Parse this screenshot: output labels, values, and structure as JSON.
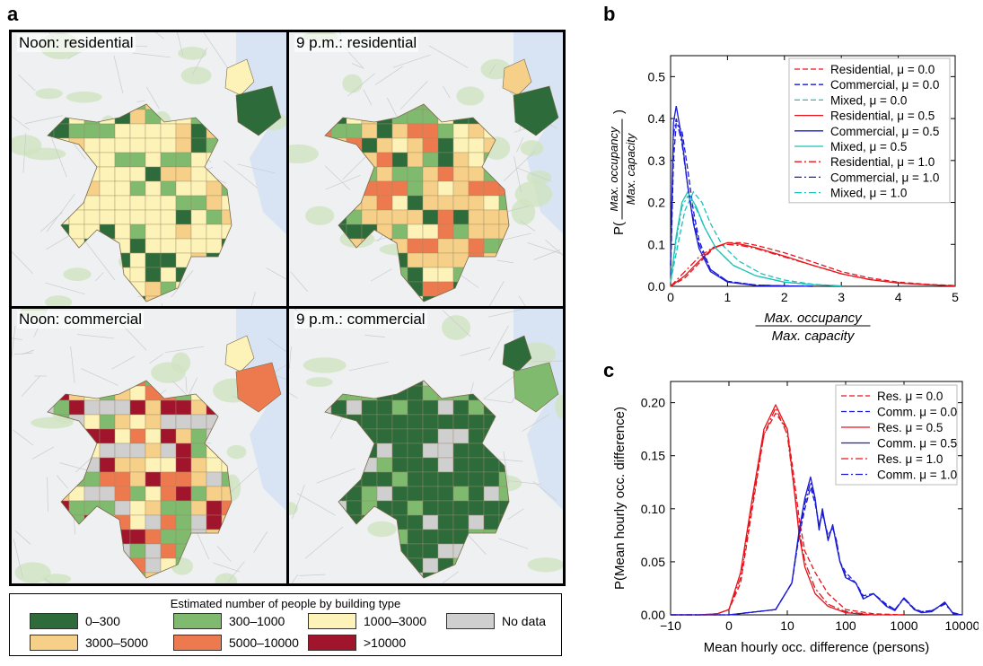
{
  "panel_labels": {
    "a": "a",
    "b": "b",
    "c": "c"
  },
  "maps": [
    {
      "title": "Noon: residential",
      "scheme": "noon_res"
    },
    {
      "title": "9 p.m.: residential",
      "scheme": "pm_res"
    },
    {
      "title": "Noon: commercial",
      "scheme": "noon_com"
    },
    {
      "title": "9 p.m.: commercial",
      "scheme": "pm_com"
    }
  ],
  "map_legend": {
    "title": "Estimated number of people by building type",
    "items": [
      {
        "label": "0–300",
        "color": "#2e6b3a"
      },
      {
        "label": "300–1000",
        "color": "#7fba6e"
      },
      {
        "label": "1000–3000",
        "color": "#fdf3b8"
      },
      {
        "label": "No data",
        "color": "#cfcfcf"
      },
      {
        "label": "3000–5000",
        "color": "#f6d089"
      },
      {
        "label": "5000–10000",
        "color": "#ec7a4e"
      },
      {
        "label": ">10000",
        "color": "#a0142c"
      }
    ]
  },
  "chart_data": [
    {
      "panel": "b",
      "type": "line",
      "xlabel_num": "Max. occupancy",
      "xlabel_den": "Max. capacity",
      "ylabel_prefix": "P(",
      "ylabel_num": "Max. occupancy",
      "ylabel_den": "Max. capacity",
      "ylabel_suffix": ")",
      "xlim": [
        0,
        5
      ],
      "ylim": [
        0,
        0.55
      ],
      "xticks": [
        "0",
        "1",
        "2",
        "3",
        "4",
        "5"
      ],
      "yticks": [
        "0.0",
        "0.1",
        "0.2",
        "0.3",
        "0.4",
        "0.5"
      ],
      "legend_position": "top-right",
      "colors": {
        "res": "#e8141c",
        "com": "#1a1ad6",
        "mix": "#1ec2b8"
      },
      "series": [
        {
          "name": "Residential, μ = 0.0",
          "color": "#e8141c",
          "dash": "dashed",
          "x": [
            0,
            0.25,
            0.5,
            0.75,
            1,
            1.25,
            1.5,
            2,
            2.5,
            3,
            3.5,
            4,
            4.5,
            5
          ],
          "y": [
            0,
            0.02,
            0.055,
            0.09,
            0.104,
            0.104,
            0.098,
            0.08,
            0.058,
            0.035,
            0.02,
            0.01,
            0.005,
            0.002
          ]
        },
        {
          "name": "Commercial, μ = 0.0",
          "color": "#1a1ad6",
          "dash": "dashed",
          "x": [
            0,
            0.05,
            0.1,
            0.2,
            0.3,
            0.4,
            0.5,
            0.7,
            1,
            1.5,
            2,
            2.5
          ],
          "y": [
            0.03,
            0.3,
            0.39,
            0.37,
            0.28,
            0.18,
            0.11,
            0.04,
            0.012,
            0.003,
            0.001,
            0
          ]
        },
        {
          "name": "Mixed, μ = 0.0",
          "color": "#1ec2b8",
          "dash": "dashed",
          "x": [
            0,
            0.1,
            0.25,
            0.4,
            0.55,
            0.7,
            0.9,
            1.2,
            1.6,
            2,
            2.5,
            3
          ],
          "y": [
            0.01,
            0.08,
            0.18,
            0.225,
            0.2,
            0.15,
            0.1,
            0.06,
            0.03,
            0.015,
            0.005,
            0.001
          ]
        },
        {
          "name": "Residential, μ = 0.5",
          "color": "#e8141c",
          "dash": "solid",
          "x": [
            0,
            0.25,
            0.5,
            0.75,
            1,
            1.25,
            1.5,
            2,
            2.5,
            3,
            3.5,
            4,
            4.5,
            5
          ],
          "y": [
            0,
            0.025,
            0.06,
            0.092,
            0.104,
            0.1,
            0.092,
            0.072,
            0.05,
            0.03,
            0.016,
            0.008,
            0.004,
            0.001
          ]
        },
        {
          "name": "Commercial, μ = 0.5",
          "color": "#1a1ad6",
          "dash": "solid",
          "x": [
            0,
            0.05,
            0.1,
            0.2,
            0.3,
            0.4,
            0.5,
            0.7,
            1,
            1.5,
            2,
            2.5
          ],
          "y": [
            0.05,
            0.39,
            0.43,
            0.35,
            0.24,
            0.15,
            0.09,
            0.035,
            0.01,
            0.002,
            0.001,
            0
          ]
        },
        {
          "name": "Mixed, μ = 0.5",
          "color": "#1ec2b8",
          "dash": "solid",
          "x": [
            0,
            0.1,
            0.2,
            0.3,
            0.45,
            0.6,
            0.8,
            1.1,
            1.5,
            2,
            2.5,
            3
          ],
          "y": [
            0.01,
            0.12,
            0.2,
            0.225,
            0.19,
            0.14,
            0.09,
            0.05,
            0.025,
            0.01,
            0.004,
            0.001
          ]
        },
        {
          "name": "Residential, μ = 1.0",
          "color": "#e8141c",
          "dash": "dashdot",
          "x": [
            0,
            0.25,
            0.5,
            0.75,
            1,
            1.25,
            1.5,
            2,
            2.5,
            3,
            3.5,
            4,
            4.5,
            5
          ],
          "y": [
            0,
            0.035,
            0.07,
            0.093,
            0.1,
            0.097,
            0.09,
            0.07,
            0.05,
            0.03,
            0.016,
            0.008,
            0.004,
            0.001
          ]
        },
        {
          "name": "Commercial, μ = 1.0",
          "color": "#1a1ad6",
          "dash": "dashdot",
          "x": [
            0,
            0.05,
            0.1,
            0.2,
            0.3,
            0.4,
            0.5,
            0.7,
            1,
            1.5,
            2,
            2.5
          ],
          "y": [
            0.05,
            0.36,
            0.4,
            0.34,
            0.24,
            0.16,
            0.1,
            0.04,
            0.012,
            0.003,
            0.001,
            0
          ]
        },
        {
          "name": "Mixed, μ = 1.0",
          "color": "#1ec2b8",
          "dash": "dashdot",
          "x": [
            0,
            0.1,
            0.2,
            0.3,
            0.45,
            0.6,
            0.8,
            1.1,
            1.5,
            2,
            2.5,
            3
          ],
          "y": [
            0.01,
            0.11,
            0.19,
            0.215,
            0.185,
            0.14,
            0.09,
            0.05,
            0.025,
            0.01,
            0.004,
            0.001
          ]
        }
      ]
    },
    {
      "panel": "c",
      "type": "line",
      "xlabel": "Mean hourly occ. difference (persons)",
      "ylabel": "P(Mean hourly occ. difference)",
      "xscale": "symlog",
      "xlim": [
        -10,
        10000
      ],
      "ylim": [
        0,
        0.22
      ],
      "xticks": [
        {
          "value": -10,
          "label": "−10"
        },
        {
          "value": 0,
          "label": "0"
        },
        {
          "value": 10,
          "label": "10"
        },
        {
          "value": 100,
          "label": "100"
        },
        {
          "value": 1000,
          "label": "1000"
        },
        {
          "value": 10000,
          "label": "10000"
        }
      ],
      "yticks": [
        "0.00",
        "0.05",
        "0.10",
        "0.15",
        "0.20"
      ],
      "legend_position": "top-right",
      "series": [
        {
          "name": "Res. μ = 0.0",
          "color": "#e8141c",
          "dash": "dashed",
          "x": [
            -10,
            -5,
            -2,
            0,
            2,
            4,
            6,
            8,
            10,
            13,
            16,
            20,
            30,
            50,
            100,
            300,
            1000
          ],
          "y": [
            0,
            0,
            0.001,
            0.005,
            0.03,
            0.1,
            0.17,
            0.19,
            0.175,
            0.13,
            0.09,
            0.06,
            0.04,
            0.02,
            0.005,
            0.001,
            0
          ]
        },
        {
          "name": "Comm. μ = 0.0",
          "color": "#1a1ad6",
          "dash": "dashed",
          "x": [
            -10,
            0,
            8,
            12,
            16,
            20,
            25,
            30,
            35,
            40,
            50,
            60,
            70,
            80,
            100,
            150,
            200,
            300,
            500,
            700,
            1000,
            1500,
            2000,
            3000,
            5000,
            7000,
            10000
          ],
          "y": [
            0,
            0,
            0.005,
            0.03,
            0.075,
            0.1,
            0.12,
            0.105,
            0.085,
            0.095,
            0.075,
            0.082,
            0.07,
            0.05,
            0.04,
            0.03,
            0.018,
            0.02,
            0.01,
            0.005,
            0.016,
            0.006,
            0.003,
            0.004,
            0.01,
            0.002,
            0
          ]
        },
        {
          "name": "Res. μ = 0.5",
          "color": "#e8141c",
          "dash": "solid",
          "x": [
            -10,
            -5,
            -2,
            0,
            2,
            4,
            6,
            8,
            10,
            13,
            16,
            20,
            30,
            50,
            100,
            300,
            1000
          ],
          "y": [
            0,
            0,
            0.001,
            0.005,
            0.04,
            0.11,
            0.175,
            0.198,
            0.175,
            0.12,
            0.075,
            0.045,
            0.02,
            0.008,
            0.002,
            0,
            0
          ]
        },
        {
          "name": "Comm. μ = 0.5",
          "color": "#1a1ad6",
          "dash": "solid",
          "x": [
            -10,
            0,
            8,
            12,
            16,
            20,
            25,
            30,
            35,
            40,
            50,
            60,
            70,
            80,
            100,
            150,
            200,
            300,
            500,
            700,
            1000,
            1500,
            2000,
            3000,
            5000,
            7000,
            10000
          ],
          "y": [
            0,
            0,
            0.005,
            0.03,
            0.08,
            0.11,
            0.13,
            0.11,
            0.08,
            0.1,
            0.07,
            0.085,
            0.065,
            0.05,
            0.035,
            0.03,
            0.015,
            0.02,
            0.008,
            0.004,
            0.016,
            0.005,
            0.002,
            0.003,
            0.012,
            0.001,
            0
          ]
        },
        {
          "name": "Res. μ = 1.0",
          "color": "#e8141c",
          "dash": "dashdot",
          "x": [
            -10,
            -5,
            -2,
            0,
            2,
            4,
            6,
            8,
            10,
            13,
            16,
            20,
            30,
            50,
            100,
            300,
            1000
          ],
          "y": [
            0,
            0,
            0.001,
            0.005,
            0.035,
            0.105,
            0.17,
            0.195,
            0.17,
            0.12,
            0.08,
            0.05,
            0.025,
            0.01,
            0.003,
            0,
            0
          ]
        },
        {
          "name": "Comm. μ = 1.0",
          "color": "#1a1ad6",
          "dash": "dashdot",
          "x": [
            -10,
            0,
            8,
            12,
            16,
            20,
            25,
            30,
            35,
            40,
            50,
            60,
            70,
            80,
            100,
            150,
            200,
            300,
            500,
            700,
            1000,
            1500,
            2000,
            3000,
            5000,
            7000,
            10000
          ],
          "y": [
            0,
            0,
            0.005,
            0.03,
            0.078,
            0.105,
            0.125,
            0.108,
            0.082,
            0.098,
            0.072,
            0.083,
            0.068,
            0.05,
            0.037,
            0.03,
            0.016,
            0.02,
            0.009,
            0.005,
            0.015,
            0.005,
            0.003,
            0.004,
            0.011,
            0.001,
            0
          ]
        }
      ]
    }
  ]
}
